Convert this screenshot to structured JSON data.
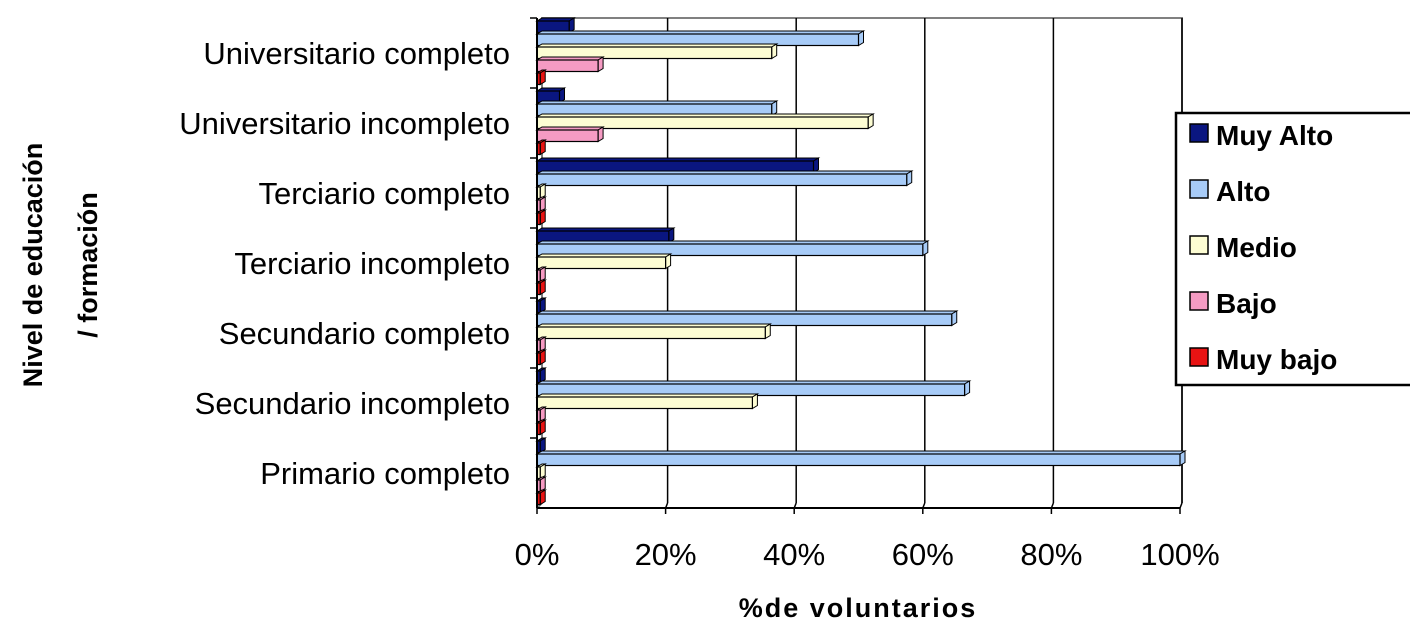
{
  "chart_data": {
    "type": "bar",
    "orientation": "horizontal",
    "title": "",
    "xlabel": "%de voluntarios",
    "ylabel_lines": [
      "Nivel de educación",
      "/ formación"
    ],
    "xlim": [
      0,
      100
    ],
    "x_ticks": [
      "0%",
      "20%",
      "40%",
      "60%",
      "80%",
      "100%"
    ],
    "grid": "vertical",
    "legend_position": "right",
    "categories": [
      "Universitario completo",
      "Universitario incompleto",
      "Terciario completo",
      "Terciario incompleto",
      "Secundario completo",
      "Secundario incompleto",
      "Primario completo"
    ],
    "series": [
      {
        "name": "Muy Alto",
        "color": "#0a1680",
        "values": [
          5,
          3.5,
          43,
          20.5,
          0.5,
          0.5,
          0.5
        ]
      },
      {
        "name": "Alto",
        "color": "#a7cbf7",
        "values": [
          50,
          36.5,
          57.5,
          60,
          64.5,
          66.5,
          100
        ]
      },
      {
        "name": "Medio",
        "color": "#fdfdd3",
        "values": [
          36.5,
          51.5,
          0.5,
          20,
          35.5,
          33.5,
          0.5
        ]
      },
      {
        "name": "Bajo",
        "color": "#f59bc3",
        "values": [
          9.5,
          9.5,
          0.5,
          0.5,
          0.5,
          0.5,
          0.5
        ]
      },
      {
        "name": "Muy bajo",
        "color": "#e81313",
        "values": [
          0.5,
          0.5,
          0.5,
          0.5,
          0.5,
          0.5,
          0.5
        ]
      }
    ]
  }
}
